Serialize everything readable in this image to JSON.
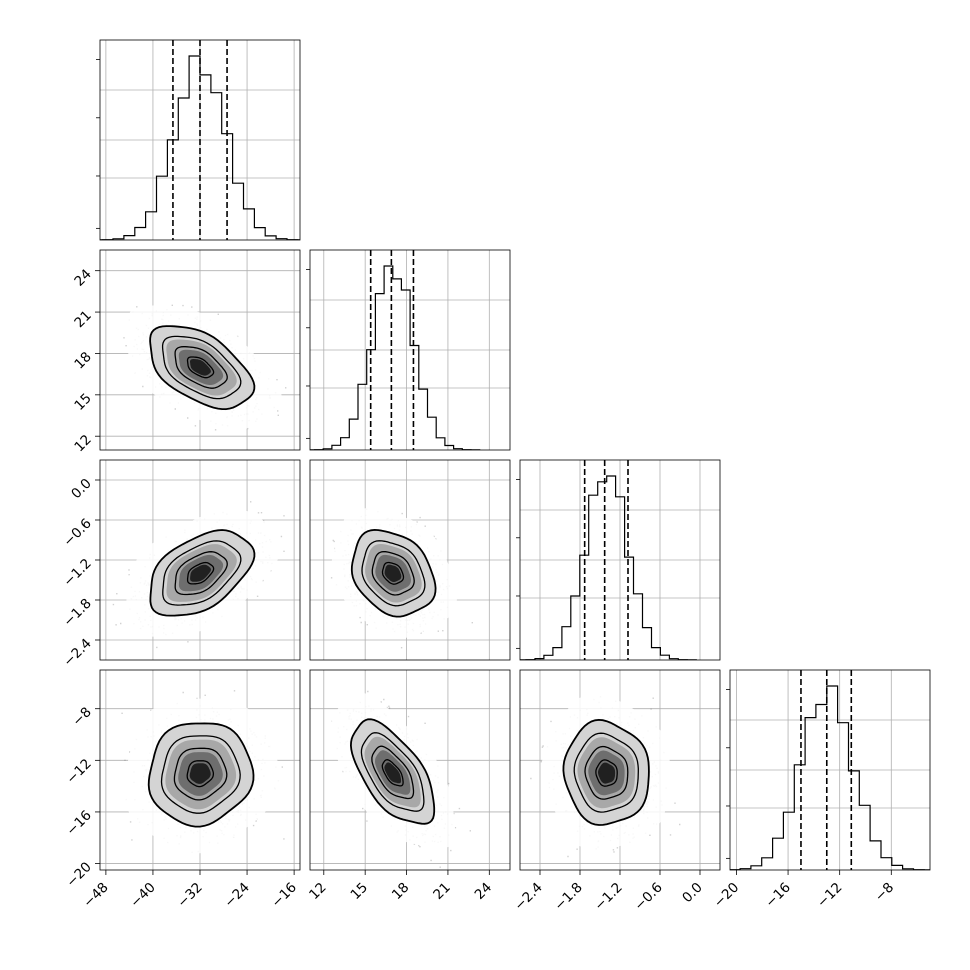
{
  "chart_data": {
    "type": "corner",
    "title": "",
    "grid": true,
    "parameters": [
      {
        "range": [
          -49,
          -15
        ],
        "ticks": [
          -48,
          -40,
          -32,
          -24,
          -16
        ],
        "tick_labels": [
          "−48",
          "−40",
          "−32",
          "−24",
          "−16"
        ],
        "quantiles": [
          -36.6,
          -32.0,
          -27.4
        ],
        "mean": -32.0,
        "sd": 4.4
      },
      {
        "range": [
          11,
          25.5
        ],
        "ticks": [
          12,
          15,
          18,
          21,
          24
        ],
        "tick_labels": [
          "12",
          "15",
          "18",
          "21",
          "24"
        ],
        "quantiles": [
          15.4,
          16.9,
          18.5
        ],
        "mean": 17.0,
        "sd": 1.5
      },
      {
        "range": [
          -2.7,
          0.3
        ],
        "ticks": [
          -2.4,
          -1.8,
          -1.2,
          -0.6,
          0.0
        ],
        "tick_labels": [
          "−2.4",
          "−1.8",
          "−1.2",
          "−0.6",
          "0.0"
        ],
        "quantiles": [
          -1.73,
          -1.43,
          -1.08
        ],
        "mean": -1.4,
        "sd": 0.32
      },
      {
        "range": [
          -20.5,
          -5
        ],
        "ticks": [
          -20,
          -16,
          -12,
          -8
        ],
        "tick_labels": [
          "−20",
          "−16",
          "−12",
          "−8"
        ],
        "quantiles": [
          -15.0,
          -13.0,
          -11.1
        ],
        "mean": -13.0,
        "sd": 2.0
      }
    ],
    "correlations": {
      "1-0": -0.5,
      "2-0": 0.45,
      "2-1": -0.25,
      "3-0": 0.05,
      "3-1": -0.6,
      "3-2": -0.05
    },
    "histogram_bins": 20,
    "contour_levels": [
      0.39,
      0.86,
      0.99
    ]
  }
}
